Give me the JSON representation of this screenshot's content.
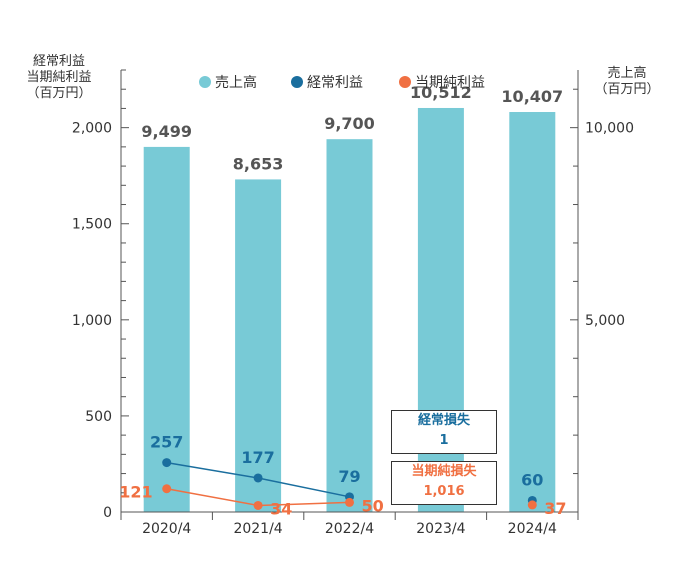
{
  "chart_data": {
    "type": "bar",
    "categories": [
      "2020/4",
      "2021/4",
      "2022/4",
      "2023/4",
      "2024/4"
    ],
    "series": [
      {
        "name": "売上高",
        "type": "bar",
        "axis": "right",
        "values": [
          9499,
          8653,
          9700,
          10512,
          10407
        ],
        "labels": [
          "9,499",
          "8,653",
          "9,700",
          "10,512",
          "10,407"
        ],
        "color": "#78cad6"
      },
      {
        "name": "経常利益",
        "type": "line",
        "axis": "left",
        "values": [
          257,
          177,
          79,
          null,
          60
        ],
        "labels": [
          "257",
          "177",
          "79",
          "",
          "60"
        ],
        "color": "#1a6e9e"
      },
      {
        "name": "当期純利益",
        "type": "line",
        "axis": "left",
        "values": [
          121,
          34,
          50,
          null,
          37
        ],
        "labels": [
          "121",
          "34",
          "50",
          "",
          "37"
        ],
        "color": "#f07042"
      }
    ],
    "left_axis": {
      "title_lines": [
        "経常利益",
        "当期純利益",
        "（百万円）"
      ],
      "ylim": [
        0,
        2300
      ],
      "ticks": [
        0,
        500,
        1000,
        1500,
        2000
      ],
      "tick_labels": [
        "0",
        "500",
        "1,000",
        "1,500",
        "2,000"
      ]
    },
    "right_axis": {
      "title_lines": [
        "売上高",
        "（百万円）"
      ],
      "ylim": [
        0,
        11500
      ],
      "ticks": [
        5000,
        10000
      ],
      "tick_labels": [
        "5,000",
        "10,000"
      ]
    },
    "legend": {
      "placement": "top",
      "items": [
        "売上高",
        "経常利益",
        "当期純利益"
      ]
    },
    "annotations": [
      {
        "category": "2023/4",
        "series": "経常利益",
        "label": "経常損失",
        "value": "1",
        "color": "#1a6e9e"
      },
      {
        "category": "2023/4",
        "series": "当期純利益",
        "label": "当期純損失",
        "value": "1,016",
        "color": "#f07042"
      }
    ]
  }
}
